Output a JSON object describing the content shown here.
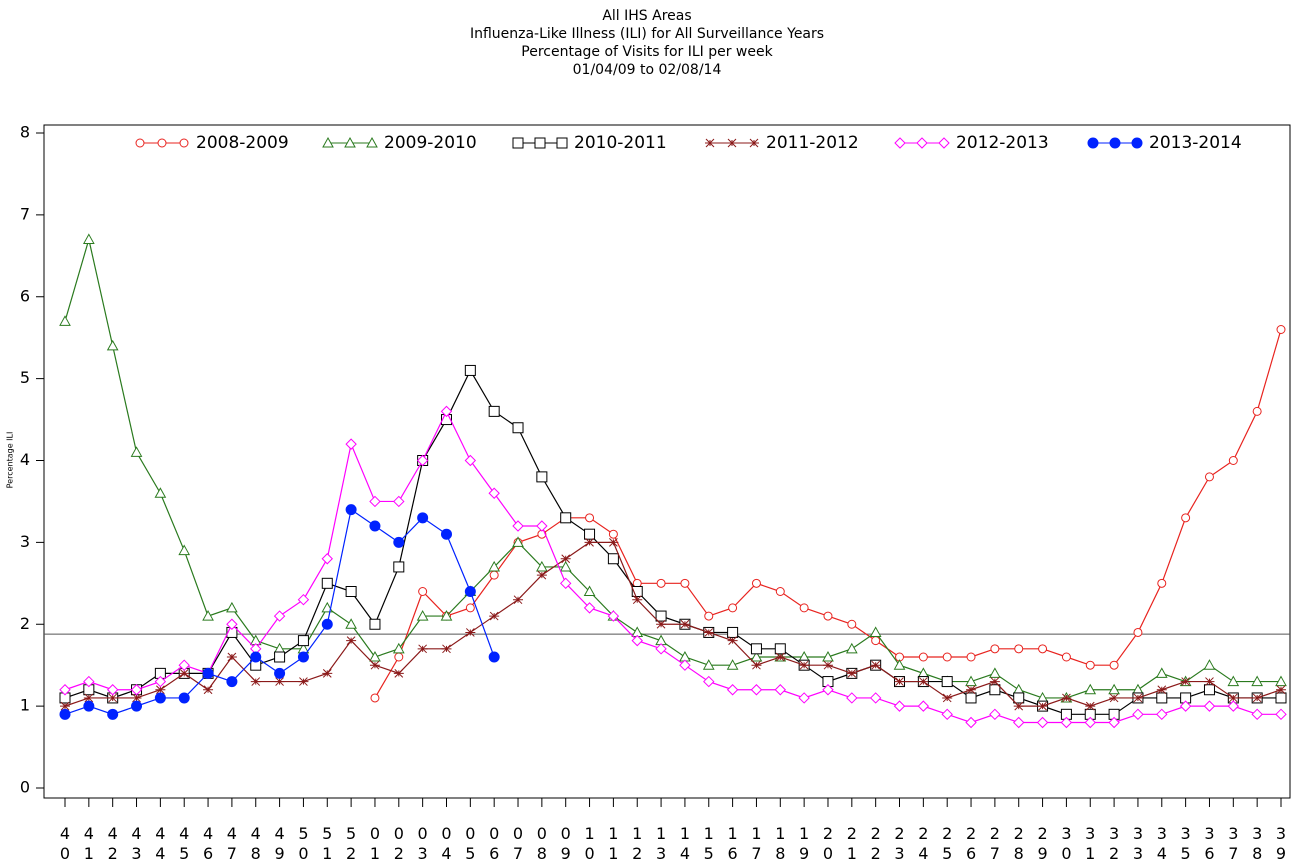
{
  "chart_data": {
    "type": "line",
    "title": [
      "All IHS Areas",
      "Influenza-Like Illness (ILI) for All Surveillance Years",
      "Percentage of Visits for ILI per week",
      "01/04/09 to 02/08/14"
    ],
    "y_label": "Percentage ILI",
    "categories": [
      "40",
      "41",
      "42",
      "43",
      "44",
      "45",
      "46",
      "47",
      "48",
      "49",
      "50",
      "51",
      "52",
      "01",
      "02",
      "03",
      "04",
      "05",
      "06",
      "07",
      "08",
      "09",
      "10",
      "11",
      "12",
      "13",
      "14",
      "15",
      "16",
      "17",
      "18",
      "19",
      "20",
      "21",
      "22",
      "23",
      "24",
      "25",
      "26",
      "27",
      "28",
      "29",
      "30",
      "31",
      "32",
      "33",
      "34",
      "35",
      "36",
      "37",
      "38",
      "39"
    ],
    "ylim": [
      0,
      8
    ],
    "yticks": [
      0,
      1,
      2,
      3,
      4,
      5,
      6,
      7,
      8
    ],
    "reference_line": 1.88,
    "series": [
      {
        "name": "2008-2009",
        "color": "#e8231f",
        "marker": "circle",
        "values": [
          null,
          null,
          null,
          null,
          null,
          null,
          null,
          null,
          null,
          null,
          null,
          null,
          null,
          1.1,
          1.6,
          2.4,
          2.1,
          2.2,
          2.6,
          3.0,
          3.1,
          3.3,
          3.3,
          3.1,
          2.5,
          2.5,
          2.5,
          2.1,
          2.2,
          2.5,
          2.4,
          2.2,
          2.1,
          2.0,
          1.8,
          1.6,
          1.6,
          1.6,
          1.6,
          1.7,
          1.7,
          1.7,
          1.6,
          1.5,
          1.5,
          1.9,
          2.5,
          3.3,
          3.8,
          4.0,
          4.6,
          5.6
        ]
      },
      {
        "name": "2009-2010",
        "color": "#2a7a1e",
        "marker": "triangle",
        "values": [
          5.7,
          6.7,
          5.4,
          4.1,
          3.6,
          2.9,
          2.1,
          2.2,
          1.8,
          1.7,
          1.7,
          2.2,
          2.0,
          1.6,
          1.7,
          2.1,
          2.1,
          2.4,
          2.7,
          3.0,
          2.7,
          2.7,
          2.4,
          2.1,
          1.9,
          1.8,
          1.6,
          1.5,
          1.5,
          1.6,
          1.6,
          1.6,
          1.6,
          1.7,
          1.9,
          1.5,
          1.4,
          1.3,
          1.3,
          1.4,
          1.2,
          1.1,
          1.1,
          1.2,
          1.2,
          1.2,
          1.4,
          1.3,
          1.5,
          1.3,
          1.3,
          1.3
        ]
      },
      {
        "name": "2010-2011",
        "color": "#000000",
        "marker": "square",
        "values": [
          1.1,
          1.2,
          1.1,
          1.2,
          1.4,
          1.4,
          1.4,
          1.9,
          1.5,
          1.6,
          1.8,
          2.5,
          2.4,
          2.0,
          2.7,
          4.0,
          4.5,
          5.1,
          4.6,
          4.4,
          3.8,
          3.3,
          3.1,
          2.8,
          2.4,
          2.1,
          2.0,
          1.9,
          1.9,
          1.7,
          1.7,
          1.5,
          1.3,
          1.4,
          1.5,
          1.3,
          1.3,
          1.3,
          1.1,
          1.2,
          1.1,
          1.0,
          0.9,
          0.9,
          0.9,
          1.1,
          1.1,
          1.1,
          1.2,
          1.1,
          1.1,
          1.1
        ]
      },
      {
        "name": "2011-2012",
        "color": "#8b1a1a",
        "marker": "star",
        "values": [
          1.0,
          1.1,
          1.1,
          1.1,
          1.2,
          1.4,
          1.2,
          1.6,
          1.3,
          1.3,
          1.3,
          1.4,
          1.8,
          1.5,
          1.4,
          1.7,
          1.7,
          1.9,
          2.1,
          2.3,
          2.6,
          2.8,
          3.0,
          3.0,
          2.3,
          2.0,
          2.0,
          1.9,
          1.8,
          1.5,
          1.6,
          1.5,
          1.5,
          1.4,
          1.5,
          1.3,
          1.3,
          1.1,
          1.2,
          1.3,
          1.0,
          1.0,
          1.1,
          1.0,
          1.1,
          1.1,
          1.2,
          1.3,
          1.3,
          1.1,
          1.1,
          1.2
        ]
      },
      {
        "name": "2012-2013",
        "color": "#ff00ff",
        "marker": "diamond",
        "values": [
          1.2,
          1.3,
          1.2,
          1.2,
          1.3,
          1.5,
          1.4,
          2.0,
          1.7,
          2.1,
          2.3,
          2.8,
          4.2,
          3.5,
          3.5,
          4.0,
          4.6,
          4.0,
          3.6,
          3.2,
          3.2,
          2.5,
          2.2,
          2.1,
          1.8,
          1.7,
          1.5,
          1.3,
          1.2,
          1.2,
          1.2,
          1.1,
          1.2,
          1.1,
          1.1,
          1.0,
          1.0,
          0.9,
          0.8,
          0.9,
          0.8,
          0.8,
          0.8,
          0.8,
          0.8,
          0.9,
          0.9,
          1.0,
          1.0,
          1.0,
          0.9,
          0.9
        ]
      },
      {
        "name": "2013-2014",
        "color": "#0022ff",
        "marker": "dot",
        "values": [
          0.9,
          1.0,
          0.9,
          1.0,
          1.1,
          1.1,
          1.4,
          1.3,
          1.6,
          1.4,
          1.6,
          2.0,
          3.4,
          3.2,
          3.0,
          3.3,
          3.1,
          2.4,
          1.6,
          null,
          null,
          null,
          null,
          null,
          null,
          null,
          null,
          null,
          null,
          null,
          null,
          null,
          null,
          null,
          null,
          null,
          null,
          null,
          null,
          null,
          null,
          null,
          null,
          null,
          null,
          null,
          null,
          null,
          null,
          null,
          null,
          null
        ]
      }
    ]
  }
}
